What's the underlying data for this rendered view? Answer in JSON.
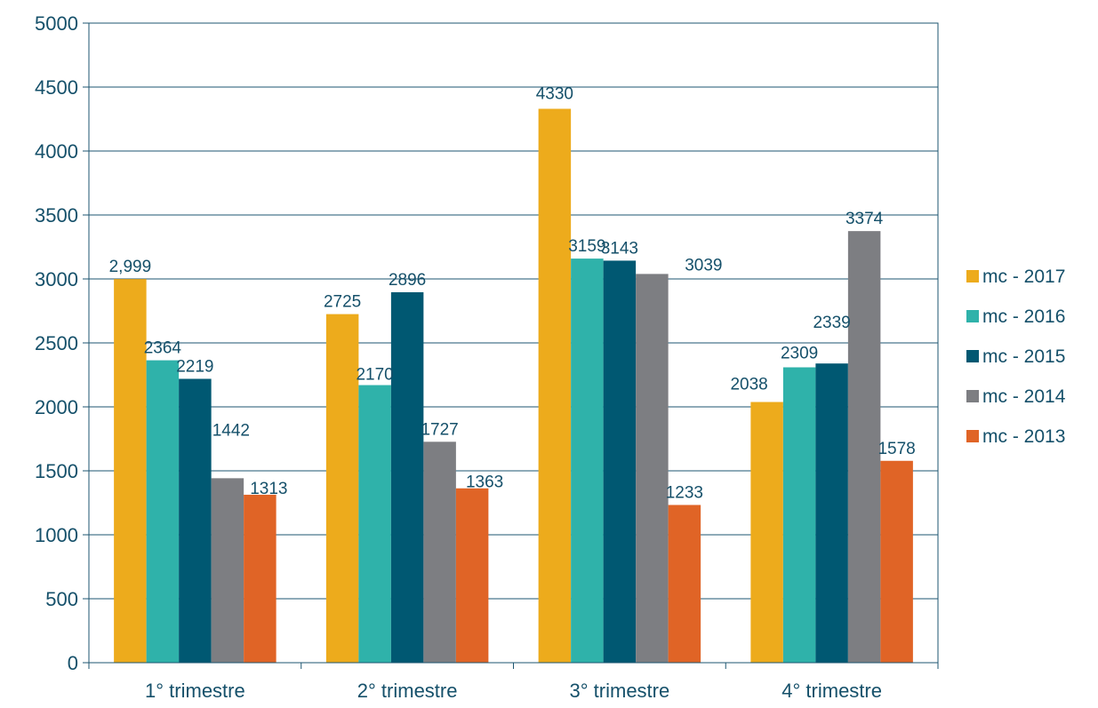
{
  "chart_data": {
    "type": "bar",
    "categories": [
      "1° trimestre",
      "2° trimestre",
      "3° trimestre",
      "4° trimestre"
    ],
    "series": [
      {
        "name": "mc - 2017",
        "color": "#EDAB1C",
        "values": [
          2999,
          2725,
          4330,
          2038
        ],
        "labels": [
          "2,999",
          "2725",
          "4330",
          "2038"
        ]
      },
      {
        "name": "mc - 2016",
        "color": "#2FB2AA",
        "values": [
          2364,
          2170,
          3159,
          2309
        ],
        "labels": [
          "2364",
          "2170",
          "3159",
          "2309"
        ]
      },
      {
        "name": "mc - 2015",
        "color": "#005872",
        "values": [
          2219,
          2896,
          3143,
          2339
        ],
        "labels": [
          "2219",
          "2896",
          "3143",
          "2339"
        ]
      },
      {
        "name": "mc - 2014",
        "color": "#7D7E82",
        "values": [
          1442,
          1727,
          3039,
          3374
        ],
        "labels": [
          "1442",
          "1727",
          "3039",
          "3374"
        ]
      },
      {
        "name": "mc - 2013",
        "color": "#E06426",
        "values": [
          1313,
          1363,
          1233,
          1578
        ],
        "labels": [
          "1313",
          "1363",
          "1233",
          "1578"
        ]
      }
    ],
    "title": "",
    "xlabel": "",
    "ylabel": "",
    "ylim": [
      0,
      5000
    ],
    "yticks": [
      0,
      500,
      1000,
      1500,
      2000,
      2500,
      3000,
      3500,
      4000,
      4500,
      5000
    ],
    "grid": true,
    "legend_position": "right"
  }
}
